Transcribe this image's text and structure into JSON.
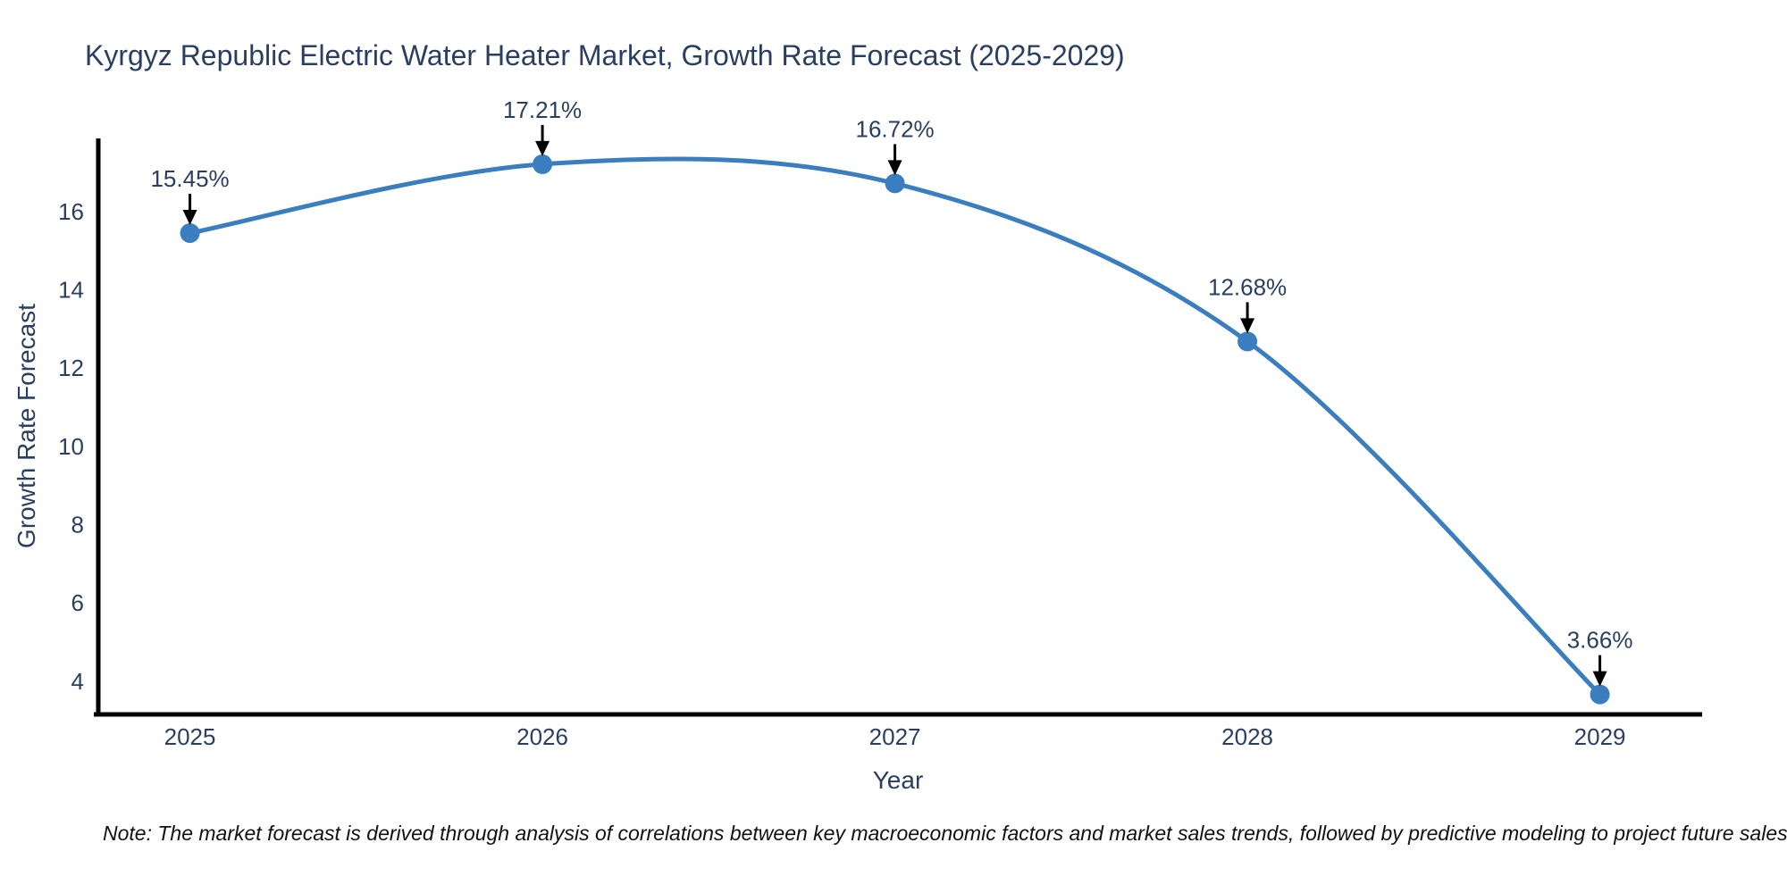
{
  "chart_data": {
    "type": "line",
    "title": "Kyrgyz Republic Electric Water Heater Market, Growth Rate Forecast (2025-2029)",
    "xlabel": "Year",
    "ylabel": "Growth Rate Forecast",
    "x": [
      2025,
      2026,
      2027,
      2028,
      2029
    ],
    "values": [
      15.45,
      17.21,
      16.72,
      12.68,
      3.66
    ],
    "point_labels": [
      "15.45%",
      "17.21%",
      "16.72%",
      "12.68%",
      "3.66%"
    ],
    "xticks": [
      2025,
      2026,
      2027,
      2028,
      2029
    ],
    "xtick_labels": [
      "2025",
      "2026",
      "2027",
      "2028",
      "2029"
    ],
    "yticks": [
      4,
      6,
      8,
      10,
      12,
      14,
      16
    ],
    "xlim": [
      2024.74,
      2029.29
    ],
    "ylim": [
      3.15,
      17.87
    ],
    "grid": false,
    "legend": "none",
    "line_smooth": true,
    "line_color": "#3a7ebf",
    "marker_color": "#3a7ebf",
    "axis_color": "#000000",
    "text_color": "#2a3f5f",
    "annotation_arrow_color": "#000000",
    "note": "Note: The market forecast is derived through analysis of correlations between key macroeconomic factors and market sales trends, followed by predictive modeling to project future sales"
  }
}
